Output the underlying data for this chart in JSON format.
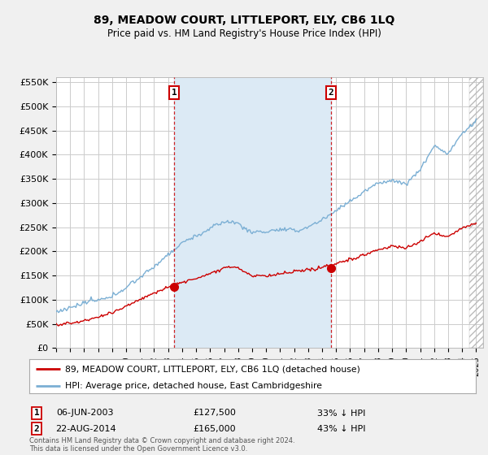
{
  "title": "89, MEADOW COURT, LITTLEPORT, ELY, CB6 1LQ",
  "subtitle": "Price paid vs. HM Land Registry's House Price Index (HPI)",
  "ylim": [
    0,
    560000
  ],
  "yticks": [
    0,
    50000,
    100000,
    150000,
    200000,
    250000,
    300000,
    350000,
    400000,
    450000,
    500000,
    550000
  ],
  "ytick_labels": [
    "£0",
    "£50K",
    "£100K",
    "£150K",
    "£200K",
    "£250K",
    "£300K",
    "£350K",
    "£400K",
    "£450K",
    "£500K",
    "£550K"
  ],
  "bg_color": "#f0f0f0",
  "plot_bg_color": "#ffffff",
  "grid_color": "#cccccc",
  "hpi_color": "#7bafd4",
  "price_color": "#cc0000",
  "shade_color": "#dceaf5",
  "marker1_x": 2003.43,
  "marker2_x": 2014.64,
  "marker1_price": 127500,
  "marker2_price": 165000,
  "marker1_date": "06-JUN-2003",
  "marker2_date": "22-AUG-2014",
  "marker1_pct": "33% ↓ HPI",
  "marker2_pct": "43% ↓ HPI",
  "legend_label1": "89, MEADOW COURT, LITTLEPORT, ELY, CB6 1LQ (detached house)",
  "legend_label2": "HPI: Average price, detached house, East Cambridgeshire",
  "footer": "Contains HM Land Registry data © Crown copyright and database right 2024.\nThis data is licensed under the Open Government Licence v3.0.",
  "x_start_year": 1995,
  "x_end_year": 2025
}
